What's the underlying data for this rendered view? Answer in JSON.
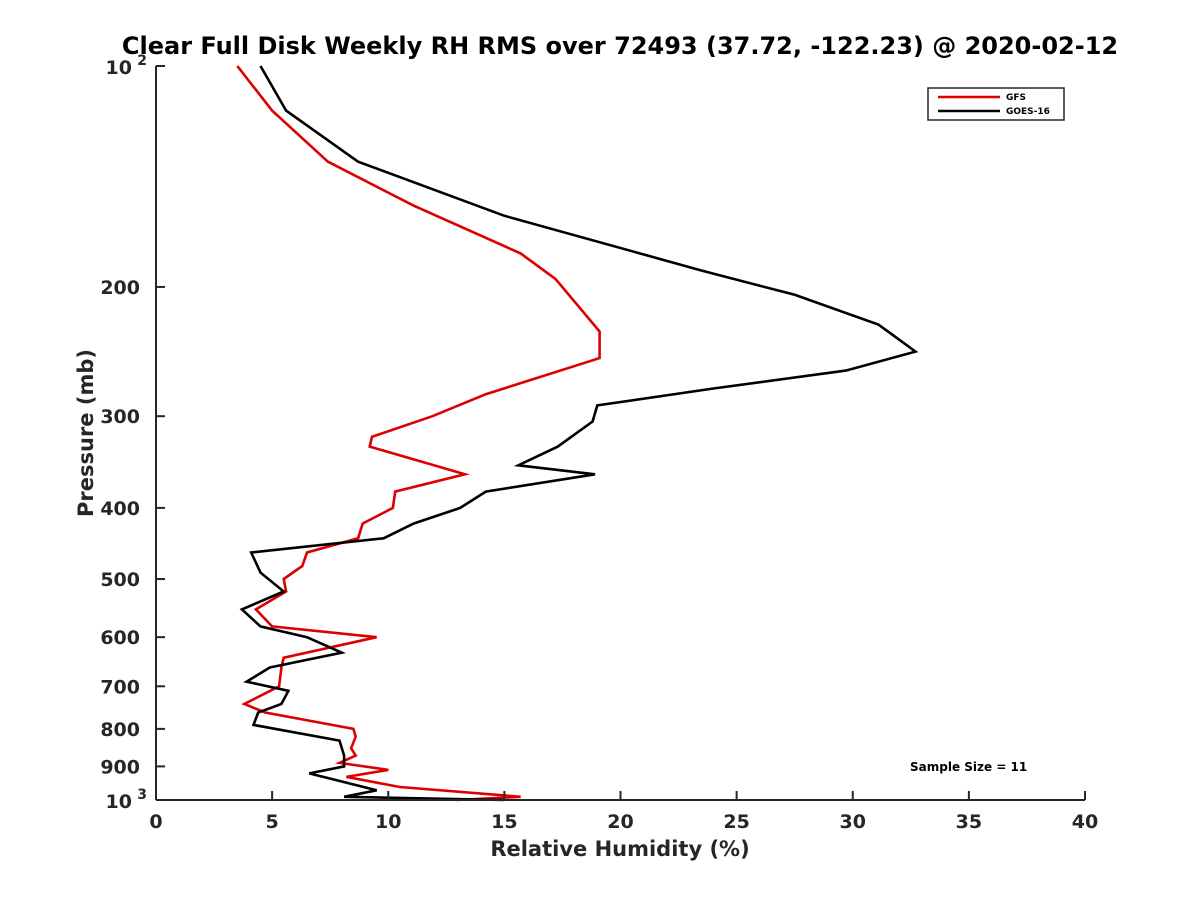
{
  "chart_data": {
    "type": "line",
    "title": "Clear Full Disk Weekly RH RMS over 72493 (37.72, -122.23) @ 2020-02-12",
    "xlabel": "Relative Humidity (%)",
    "ylabel": "Pressure (mb)",
    "xlim": [
      0,
      40
    ],
    "ylim": [
      100,
      1000
    ],
    "yscale": "log",
    "y_reversed": true,
    "grid": false,
    "legend_position": "top-right",
    "x_ticks": [
      "0",
      "5",
      "10",
      "15",
      "20",
      "25",
      "30",
      "35",
      "40"
    ],
    "y_tick_values": [
      100,
      200,
      300,
      400,
      500,
      600,
      700,
      800,
      900,
      1000
    ],
    "y_ticks": [
      {
        "value": 100,
        "base": "10",
        "exp": "2"
      },
      {
        "value": 200,
        "label": "200"
      },
      {
        "value": 300,
        "label": "300"
      },
      {
        "value": 400,
        "label": "400"
      },
      {
        "value": 500,
        "label": "500"
      },
      {
        "value": 600,
        "label": "600"
      },
      {
        "value": 700,
        "label": "700"
      },
      {
        "value": 800,
        "label": "800"
      },
      {
        "value": 900,
        "label": "900"
      },
      {
        "value": 1000,
        "base": "10",
        "exp": "3"
      }
    ],
    "series": [
      {
        "name": "GFS",
        "color": "#dd0000",
        "pressure": [
          100,
          115,
          135,
          155,
          180,
          195,
          230,
          250,
          280,
          300,
          320,
          330,
          360,
          380,
          400,
          420,
          440,
          460,
          480,
          500,
          520,
          550,
          580,
          600,
          640,
          660,
          700,
          740,
          760,
          800,
          820,
          850,
          870,
          890,
          910,
          930,
          960,
          990,
          1000
        ],
        "values": [
          3.5,
          5.0,
          7.4,
          11.1,
          15.7,
          17.2,
          19.1,
          19.1,
          14.2,
          11.9,
          9.3,
          9.2,
          13.3,
          10.3,
          10.2,
          8.9,
          8.7,
          6.5,
          6.3,
          5.5,
          5.6,
          4.3,
          5.0,
          9.5,
          5.5,
          5.4,
          5.3,
          3.8,
          4.7,
          8.5,
          8.6,
          8.4,
          8.6,
          7.9,
          10.0,
          8.2,
          10.5,
          15.7,
          12.9
        ]
      },
      {
        "name": "GOES-16",
        "color": "#000000",
        "pressure": [
          100,
          115,
          135,
          160,
          190,
          205,
          225,
          245,
          260,
          275,
          290,
          305,
          330,
          350,
          360,
          380,
          400,
          420,
          440,
          460,
          490,
          520,
          550,
          580,
          600,
          630,
          660,
          690,
          710,
          740,
          760,
          790,
          830,
          870,
          900,
          920,
          970,
          990,
          1000
        ],
        "values": [
          4.5,
          5.6,
          8.7,
          15.0,
          23.5,
          27.5,
          31.1,
          32.7,
          29.7,
          24.0,
          19.0,
          18.8,
          17.3,
          15.6,
          18.9,
          14.2,
          13.1,
          11.1,
          9.8,
          4.1,
          4.5,
          5.5,
          3.7,
          4.5,
          6.5,
          8.0,
          4.9,
          3.9,
          5.7,
          5.4,
          4.4,
          4.2,
          7.9,
          8.1,
          8.1,
          6.6,
          9.5,
          8.1,
          15.0
        ]
      }
    ],
    "annotations": [
      "Sample Size = 11"
    ]
  }
}
